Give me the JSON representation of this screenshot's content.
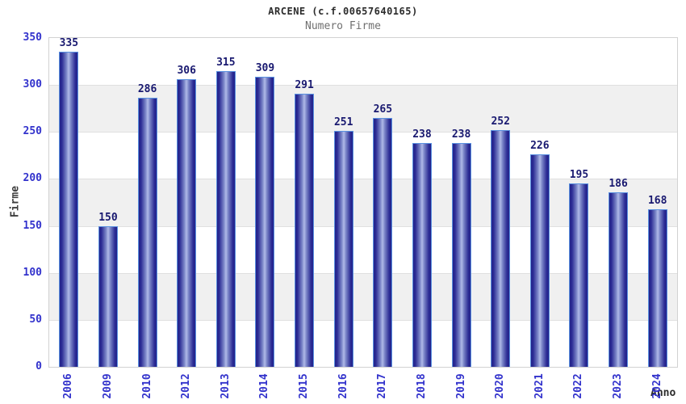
{
  "chart_data": {
    "type": "bar",
    "title": "ARCENE (c.f.00657640165)",
    "subtitle": "Numero Firme",
    "xlabel": "Anno",
    "ylabel": "Firme",
    "categories": [
      "2006",
      "2009",
      "2010",
      "2012",
      "2013",
      "2014",
      "2015",
      "2016",
      "2017",
      "2018",
      "2019",
      "2020",
      "2021",
      "2022",
      "2023",
      "2024"
    ],
    "values": [
      335,
      150,
      286,
      306,
      315,
      309,
      291,
      251,
      265,
      238,
      238,
      252,
      226,
      195,
      186,
      168
    ],
    "ylim": [
      0,
      350
    ],
    "ytick_step": 50,
    "yticks": [
      0,
      50,
      100,
      150,
      200,
      250,
      300,
      350
    ],
    "grid": "horizontal gridlines every 50 with alternating white/gray bands",
    "legend": "none",
    "colors": {
      "bar_edge": "#23238a",
      "bar_mid": "#7b86c8",
      "bar_center_highlight": "#b0bae8",
      "bar_border": "#5a91e0",
      "tick_label": "#3232cc",
      "value_label": "#191970",
      "band_gray": "#f0f0f0",
      "gridline": "#e0e0e0",
      "plot_border": "#d2d2d2",
      "title_color": "#2b2b2b",
      "subtitle_color": "#707070",
      "axis_title_color": "#3d3d3d"
    }
  }
}
